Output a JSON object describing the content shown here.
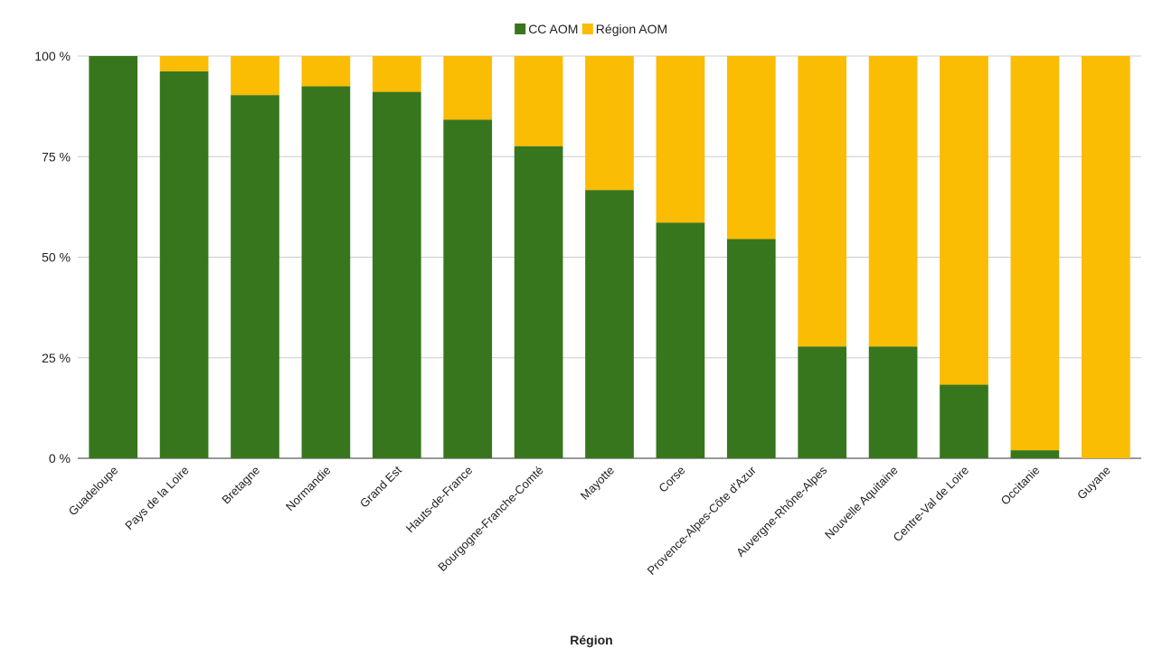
{
  "chart_data": {
    "type": "bar",
    "stacked": true,
    "percent": true,
    "title": "",
    "xlabel": "Région",
    "ylabel": "",
    "ylim": [
      0,
      100
    ],
    "yticks": [
      {
        "value": 0,
        "label": "0 %"
      },
      {
        "value": 25,
        "label": "25 %"
      },
      {
        "value": 50,
        "label": "50 %"
      },
      {
        "value": 75,
        "label": "75 %"
      },
      {
        "value": 100,
        "label": "100 %"
      }
    ],
    "grid": true,
    "legend_position": "top",
    "categories": [
      "Guadeloupe",
      "Pays de la Loire",
      "Bretagne",
      "Normandie",
      "Grand Est",
      "Hauts-de-France",
      "Bourgogne-Franche-Comté",
      "Mayotte",
      "Corse",
      "Provence-Alpes-Côte d'Azur",
      "Auvergne-Rhône-Alpes",
      "Nouvelle Aquitaine",
      "Centre-Val de Loire",
      "Occitanie",
      "Guyane"
    ],
    "series": [
      {
        "name": "CC AOM",
        "color": "#38761d",
        "values": [
          100,
          96.2,
          90.3,
          92.5,
          91.1,
          84.2,
          77.6,
          66.7,
          58.6,
          54.5,
          27.8,
          27.8,
          18.3,
          2,
          0
        ]
      },
      {
        "name": "Région AOM",
        "color": "#fbbc04",
        "values": [
          0,
          3.8,
          9.7,
          7.5,
          8.9,
          15.8,
          22.4,
          33.3,
          41.4,
          45.5,
          72.2,
          72.2,
          81.7,
          98,
          100
        ]
      }
    ]
  }
}
